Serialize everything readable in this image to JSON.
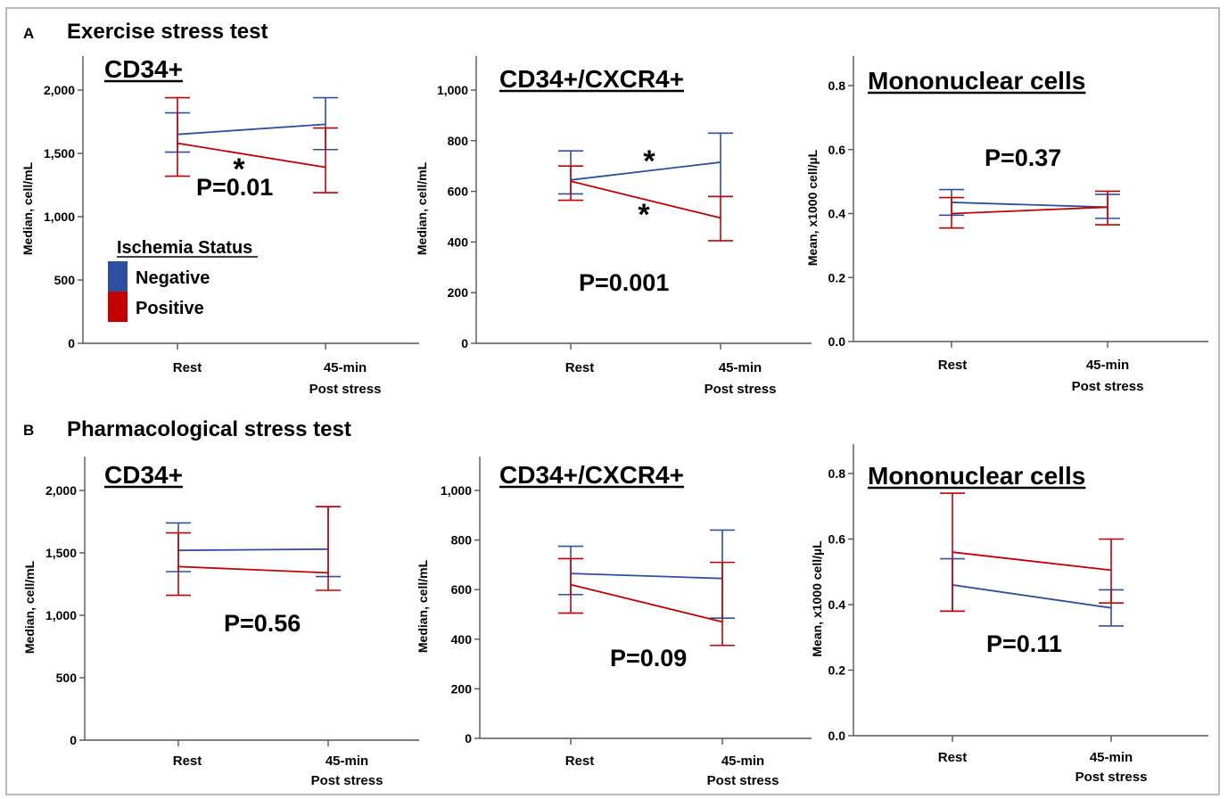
{
  "sections": [
    {
      "letter": "A",
      "title": "Exercise stress test"
    },
    {
      "letter": "B",
      "title": "Pharmacological stress test"
    }
  ],
  "legend": {
    "title": "Ischemia Status",
    "entries": [
      {
        "name": "Negative",
        "color": "#2e4fa0"
      },
      {
        "name": "Positive",
        "color": "#c40000"
      }
    ]
  },
  "chart_data": [
    {
      "type": "line",
      "section": "A",
      "title": "CD34+",
      "ylabel": "Median, cell/mL",
      "ylim": [
        0,
        2000
      ],
      "yticks": [
        "0",
        "500",
        "1,000",
        "1,500",
        "2,000"
      ],
      "categories": [
        "Rest",
        "45-min|Post stress"
      ],
      "pvalue": "P=0.01",
      "stars": [
        "*"
      ],
      "series": [
        {
          "name": "Negative",
          "values": [
            1650,
            1730
          ],
          "ci_low": [
            1510,
            1530
          ],
          "ci_high": [
            1820,
            1940
          ]
        },
        {
          "name": "Positive",
          "values": [
            1580,
            1390
          ],
          "ci_low": [
            1320,
            1190
          ],
          "ci_high": [
            1940,
            1700
          ]
        }
      ]
    },
    {
      "type": "line",
      "section": "A",
      "title": "CD34+/CXCR4+",
      "ylabel": "Median, cell/mL",
      "ylim": [
        0,
        1000
      ],
      "yticks": [
        "0",
        "200",
        "400",
        "600",
        "800",
        "1,000"
      ],
      "categories": [
        "Rest",
        "45-min|Post stress"
      ],
      "pvalue": "P=0.001",
      "stars": [
        "*",
        "*"
      ],
      "series": [
        {
          "name": "Negative",
          "values": [
            645,
            715
          ],
          "ci_low": [
            590,
            580
          ],
          "ci_high": [
            760,
            830
          ]
        },
        {
          "name": "Positive",
          "values": [
            640,
            495
          ],
          "ci_low": [
            565,
            405
          ],
          "ci_high": [
            700,
            580
          ]
        }
      ]
    },
    {
      "type": "line",
      "section": "A",
      "title": "Mononuclear cells",
      "ylabel": "Mean, x1000 cell/µL",
      "ylim": [
        0,
        0.8
      ],
      "yticks": [
        "0.0",
        "0.2",
        "0.4",
        "0.6",
        "0.8"
      ],
      "categories": [
        "Rest",
        "45-min|Post stress"
      ],
      "pvalue": "P=0.37",
      "stars": [],
      "series": [
        {
          "name": "Negative",
          "values": [
            0.435,
            0.42
          ],
          "ci_low": [
            0.395,
            0.385
          ],
          "ci_high": [
            0.475,
            0.46
          ]
        },
        {
          "name": "Positive",
          "values": [
            0.4,
            0.42
          ],
          "ci_low": [
            0.355,
            0.365
          ],
          "ci_high": [
            0.45,
            0.47
          ]
        }
      ]
    },
    {
      "type": "line",
      "section": "B",
      "title": "CD34+",
      "ylabel": "Median, cell/mL",
      "ylim": [
        0,
        2000
      ],
      "yticks": [
        "0",
        "500",
        "1,000",
        "1,500",
        "2,000"
      ],
      "categories": [
        "Rest",
        "45-min|Post stress"
      ],
      "pvalue": "P=0.56",
      "stars": [],
      "series": [
        {
          "name": "Negative",
          "values": [
            1520,
            1530
          ],
          "ci_low": [
            1350,
            1310
          ],
          "ci_high": [
            1740,
            1870
          ]
        },
        {
          "name": "Positive",
          "values": [
            1390,
            1340
          ],
          "ci_low": [
            1160,
            1200
          ],
          "ci_high": [
            1660,
            1870
          ]
        }
      ]
    },
    {
      "type": "line",
      "section": "B",
      "title": "CD34+/CXCR4+",
      "ylabel": "Median, cell/mL",
      "ylim": [
        0,
        1000
      ],
      "yticks": [
        "0",
        "200",
        "400",
        "600",
        "800",
        "1,000"
      ],
      "categories": [
        "Rest",
        "45-min|Post stress"
      ],
      "pvalue": "P=0.09",
      "stars": [],
      "series": [
        {
          "name": "Negative",
          "values": [
            665,
            645
          ],
          "ci_low": [
            580,
            485
          ],
          "ci_high": [
            775,
            840
          ]
        },
        {
          "name": "Positive",
          "values": [
            620,
            470
          ],
          "ci_low": [
            505,
            375
          ],
          "ci_high": [
            725,
            710
          ]
        }
      ]
    },
    {
      "type": "line",
      "section": "B",
      "title": "Mononuclear cells",
      "ylabel": "Mean, x1000 cell/µL",
      "ylim": [
        0,
        0.8
      ],
      "yticks": [
        "0.0",
        "0.2",
        "0.4",
        "0.6",
        "0.8"
      ],
      "categories": [
        "Rest",
        "45-min|Post stress"
      ],
      "pvalue": "P=0.11",
      "stars": [],
      "series": [
        {
          "name": "Negative",
          "values": [
            0.46,
            0.39
          ],
          "ci_low": [
            0.38,
            0.335
          ],
          "ci_high": [
            0.54,
            0.445
          ]
        },
        {
          "name": "Positive",
          "values": [
            0.56,
            0.505
          ],
          "ci_low": [
            0.38,
            0.405
          ],
          "ci_high": [
            0.74,
            0.6
          ]
        }
      ]
    }
  ]
}
